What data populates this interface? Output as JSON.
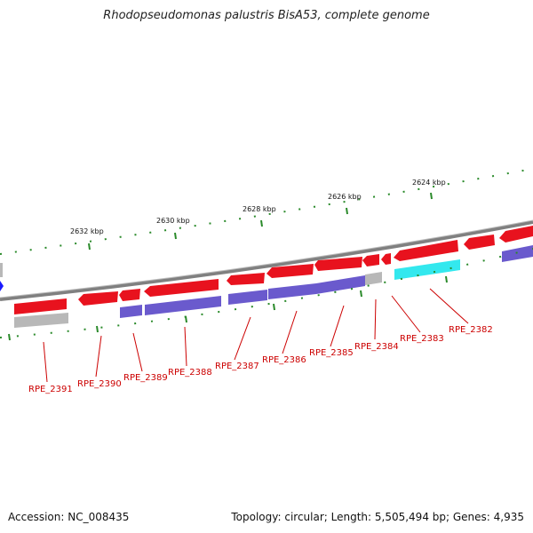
{
  "title": "Rhodopseudomonas palustris BisA53, complete genome",
  "footer": {
    "accession": "Accession: NC_008435",
    "topology": "Topology: circular; Length: 5,505,494 bp; Genes: 4,935"
  },
  "ticks": [
    "2632 kbp",
    "2630 kbp",
    "2628 kbp",
    "2626 kbp",
    "2624 kbp"
  ],
  "genes": [
    "RPE_2391",
    "RPE_2390",
    "RPE_2389",
    "RPE_2388",
    "RPE_2387",
    "RPE_2386",
    "RPE_2385",
    "RPE_2384",
    "RPE_2383",
    "RPE_2382"
  ],
  "colors": {
    "cds": "#e8121e",
    "gene": "#6a5acd",
    "pseudo": "#b8b8b8",
    "rna": "#33e8ee",
    "backbone": "#808080",
    "ticks": "#2a8a2a",
    "labels": "#cc0000",
    "origin": "#1a1aff"
  }
}
